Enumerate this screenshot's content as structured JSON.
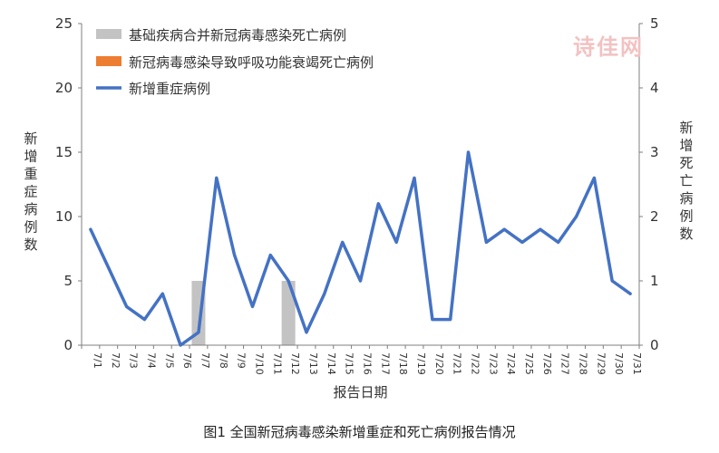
{
  "watermark": "诗佳网",
  "caption": "图1 全国新冠病毒感染新增重症和死亡病例报告情况",
  "colors": {
    "bar_comorbid": "#c3c3c3",
    "bar_respiratory": "#ed7d31",
    "line_severe": "#4472c4",
    "axis": "#7f7f7f",
    "text": "#333333"
  },
  "chart_data": {
    "type": "bar+line",
    "xlabel": "报告日期",
    "ylabel_left": "新增重症病例数",
    "ylabel_right": "新增死亡病例数",
    "ylim_left": [
      0,
      25
    ],
    "yticks_left": [
      0,
      5,
      10,
      15,
      20,
      25
    ],
    "ylim_right": [
      0,
      5
    ],
    "yticks_right": [
      0,
      1,
      2,
      3,
      4,
      5
    ],
    "grid": false,
    "legend_position": "top-left",
    "categories": [
      "7/1",
      "7/2",
      "7/3",
      "7/4",
      "7/5",
      "7/6",
      "7/7",
      "7/8",
      "7/9",
      "7/10",
      "7/11",
      "7/12",
      "7/13",
      "7/14",
      "7/15",
      "7/16",
      "7/17",
      "7/18",
      "7/19",
      "7/20",
      "7/21",
      "7/22",
      "7/23",
      "7/24",
      "7/25",
      "7/26",
      "7/27",
      "7/28",
      "7/29",
      "7/30",
      "7/31"
    ],
    "series": [
      {
        "name": "基础疾病合并新冠病毒感染死亡病例",
        "type": "bar",
        "axis": "right",
        "values": [
          0,
          0,
          0,
          0,
          0,
          0,
          1,
          0,
          0,
          0,
          0,
          1,
          0,
          0,
          0,
          0,
          0,
          0,
          0,
          0,
          0,
          0,
          0,
          0,
          0,
          0,
          0,
          0,
          0,
          0,
          0
        ]
      },
      {
        "name": "新冠病毒感染导致呼吸功能衰竭死亡病例",
        "type": "bar",
        "axis": "right",
        "values": [
          0,
          0,
          0,
          0,
          0,
          0,
          0,
          0,
          0,
          0,
          0,
          0,
          0,
          0,
          0,
          0,
          0,
          0,
          0,
          0,
          0,
          0,
          0,
          0,
          0,
          0,
          0,
          0,
          0,
          0,
          0
        ]
      },
      {
        "name": "新增重症病例",
        "type": "line",
        "axis": "left",
        "values": [
          9,
          6,
          3,
          2,
          4,
          0,
          1,
          13,
          7,
          3,
          7,
          5,
          1,
          4,
          8,
          5,
          11,
          8,
          13,
          2,
          2,
          15,
          8,
          9,
          8,
          9,
          8,
          10,
          13,
          5,
          4
        ]
      }
    ]
  }
}
